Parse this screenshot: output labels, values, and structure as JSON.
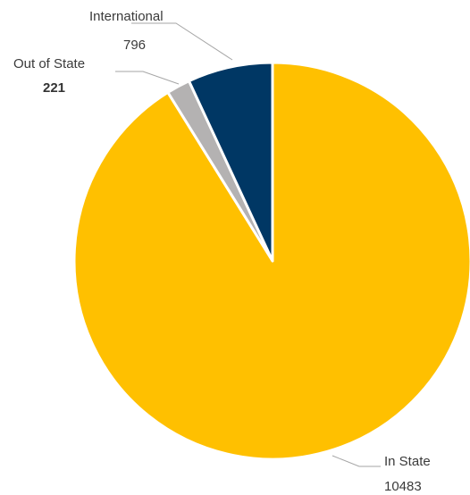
{
  "chart_data": {
    "type": "pie",
    "title": "",
    "slices": [
      {
        "label": "In State",
        "value": 10483,
        "color": "#ffc000",
        "value_bold": false
      },
      {
        "label": "Out of State",
        "value": 221,
        "color": "#b4b2b2",
        "value_bold": true
      },
      {
        "label": "International",
        "value": 796,
        "color": "#003764",
        "value_bold": false
      }
    ],
    "start_angle_deg": 0,
    "direction": "clockwise",
    "slice_border_color": "#ffffff",
    "legend": "none"
  }
}
